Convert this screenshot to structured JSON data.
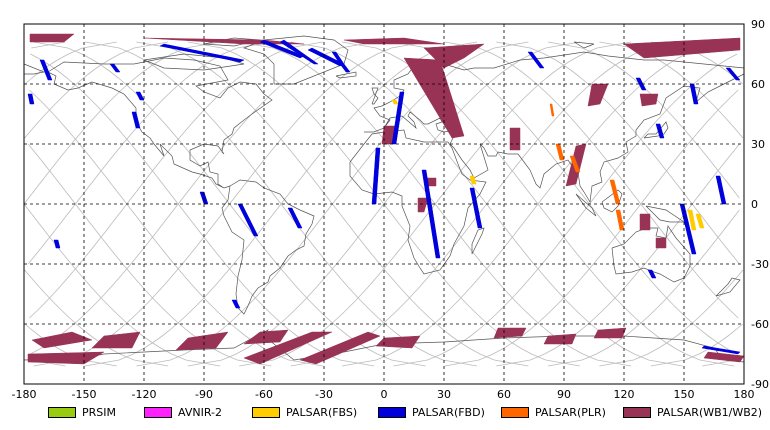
{
  "colors": {
    "PRSIM": "#99cc11",
    "AVNIR-2": "#ff22ff",
    "PALSAR(FBS)": "#ffcc00",
    "PALSAR(FBD)": "#0000dd",
    "PALSAR(PLR)": "#ff6600",
    "PALSAR(WB1/WB2)": "#993355",
    "grid": "#000000",
    "coast": "#555555",
    "track": "#bbbbbb"
  },
  "axes": {
    "lon_ticks": [
      "-180",
      "-150",
      "-120",
      "-90",
      "-60",
      "-30",
      "0",
      "30",
      "60",
      "90",
      "120",
      "150",
      "180"
    ],
    "lat_ticks": [
      "90",
      "60",
      "30",
      "0",
      "-30",
      "-60",
      "-90"
    ],
    "lon_range": [
      -180,
      180
    ],
    "lat_range": [
      -90,
      90
    ]
  },
  "legend": [
    {
      "key": "PRSIM",
      "label": "PRSIM"
    },
    {
      "key": "AVNIR-2",
      "label": "AVNIR-2"
    },
    {
      "key": "PALSAR(FBS)",
      "label": "PALSAR(FBS)"
    },
    {
      "key": "PALSAR(FBD)",
      "label": "PALSAR(FBD)"
    },
    {
      "key": "PALSAR(PLR)",
      "label": "PALSAR(PLR)"
    },
    {
      "key": "PALSAR(WB1/WB2)",
      "label": "PALSAR(WB1/WB2)"
    }
  ],
  "scenes": [
    {
      "sensor": "PALSAR(WB1/WB2)",
      "coords": [
        [
          -177,
          85
        ],
        [
          -155,
          85
        ],
        [
          -160,
          81
        ],
        [
          -177,
          81
        ]
      ]
    },
    {
      "sensor": "PALSAR(WB1/WB2)",
      "coords": [
        [
          -120,
          83
        ],
        [
          -70,
          80
        ],
        [
          -40,
          80
        ],
        [
          -60,
          82
        ]
      ]
    },
    {
      "sensor": "PALSAR(WB1/WB2)",
      "coords": [
        [
          -20,
          82
        ],
        [
          10,
          83
        ],
        [
          30,
          80
        ],
        [
          -10,
          80
        ]
      ]
    },
    {
      "sensor": "PALSAR(WB1/WB2)",
      "coords": [
        [
          20,
          78
        ],
        [
          50,
          80
        ],
        [
          40,
          73
        ],
        [
          30,
          68
        ]
      ]
    },
    {
      "sensor": "PALSAR(WB1/WB2)",
      "coords": [
        [
          10,
          73
        ],
        [
          28,
          72
        ],
        [
          40,
          34
        ],
        [
          34,
          33
        ]
      ]
    },
    {
      "sensor": "PALSAR(WB1/WB2)",
      "coords": [
        [
          120,
          80
        ],
        [
          178,
          83
        ],
        [
          178,
          77
        ],
        [
          130,
          73
        ]
      ]
    },
    {
      "sensor": "PALSAR(WB1/WB2)",
      "coords": [
        [
          104,
          60
        ],
        [
          112,
          60
        ],
        [
          108,
          50
        ],
        [
          102,
          49
        ]
      ]
    },
    {
      "sensor": "PALSAR(WB1/WB2)",
      "coords": [
        [
          128,
          55
        ],
        [
          137,
          55
        ],
        [
          136,
          50
        ],
        [
          129,
          49
        ]
      ]
    },
    {
      "sensor": "PALSAR(WB1/WB2)",
      "coords": [
        [
          0,
          39
        ],
        [
          6,
          39
        ],
        [
          4,
          30
        ],
        [
          -1,
          30
        ]
      ]
    },
    {
      "sensor": "PALSAR(WB1/WB2)",
      "coords": [
        [
          63,
          38
        ],
        [
          68,
          38
        ],
        [
          68,
          27
        ],
        [
          63,
          27
        ]
      ]
    },
    {
      "sensor": "PALSAR(WB1/WB2)",
      "coords": [
        [
          21,
          13
        ],
        [
          26,
          13
        ],
        [
          26,
          9
        ],
        [
          21,
          9
        ]
      ]
    },
    {
      "sensor": "PALSAR(WB1/WB2)",
      "coords": [
        [
          17,
          3
        ],
        [
          22,
          3
        ],
        [
          20,
          -4
        ],
        [
          17,
          -4
        ]
      ]
    },
    {
      "sensor": "PALSAR(WB1/WB2)",
      "coords": [
        [
          96,
          29
        ],
        [
          101,
          30
        ],
        [
          96,
          10
        ],
        [
          91,
          9
        ]
      ]
    },
    {
      "sensor": "PALSAR(WB1/WB2)",
      "coords": [
        [
          128,
          -5
        ],
        [
          133,
          -5
        ],
        [
          133,
          -13
        ],
        [
          128,
          -13
        ]
      ]
    },
    {
      "sensor": "PALSAR(WB1/WB2)",
      "coords": [
        [
          136,
          -17
        ],
        [
          141,
          -17
        ],
        [
          141,
          -22
        ],
        [
          136,
          -22
        ]
      ]
    },
    {
      "sensor": "PALSAR(WB1/WB2)",
      "coords": [
        [
          -176,
          -68
        ],
        [
          -156,
          -64
        ],
        [
          -146,
          -68
        ],
        [
          -170,
          -72
        ]
      ]
    },
    {
      "sensor": "PALSAR(WB1/WB2)",
      "coords": [
        [
          -178,
          -75
        ],
        [
          -140,
          -74
        ],
        [
          -150,
          -80
        ],
        [
          -178,
          -79
        ]
      ]
    },
    {
      "sensor": "PALSAR(WB1/WB2)",
      "coords": [
        [
          -140,
          -66
        ],
        [
          -122,
          -64
        ],
        [
          -126,
          -72
        ],
        [
          -146,
          -72
        ]
      ]
    },
    {
      "sensor": "PALSAR(WB1/WB2)",
      "coords": [
        [
          -98,
          -67
        ],
        [
          -78,
          -64
        ],
        [
          -84,
          -72
        ],
        [
          -104,
          -73
        ]
      ]
    },
    {
      "sensor": "PALSAR(WB1/WB2)",
      "coords": [
        [
          -62,
          -64
        ],
        [
          -48,
          -63
        ],
        [
          -52,
          -69
        ],
        [
          -70,
          -70
        ]
      ]
    },
    {
      "sensor": "PALSAR(WB1/WB2)",
      "coords": [
        [
          -70,
          -77
        ],
        [
          -36,
          -64
        ],
        [
          -26,
          -64
        ],
        [
          -62,
          -80
        ]
      ]
    },
    {
      "sensor": "PALSAR(WB1/WB2)",
      "coords": [
        [
          -42,
          -78
        ],
        [
          -8,
          -64
        ],
        [
          -2,
          -66
        ],
        [
          -34,
          -80
        ]
      ]
    },
    {
      "sensor": "PALSAR(WB1/WB2)",
      "coords": [
        [
          0,
          -67
        ],
        [
          18,
          -66
        ],
        [
          14,
          -72
        ],
        [
          -4,
          -71
        ]
      ]
    },
    {
      "sensor": "PALSAR(WB1/WB2)",
      "coords": [
        [
          57,
          -62
        ],
        [
          71,
          -62
        ],
        [
          69,
          -66
        ],
        [
          55,
          -67
        ]
      ]
    },
    {
      "sensor": "PALSAR(WB1/WB2)",
      "coords": [
        [
          82,
          -66
        ],
        [
          96,
          -65
        ],
        [
          94,
          -70
        ],
        [
          80,
          -70
        ]
      ]
    },
    {
      "sensor": "PALSAR(WB1/WB2)",
      "coords": [
        [
          107,
          -63
        ],
        [
          121,
          -62
        ],
        [
          119,
          -67
        ],
        [
          105,
          -67
        ]
      ]
    },
    {
      "sensor": "PALSAR(WB1/WB2)",
      "coords": [
        [
          162,
          -74
        ],
        [
          180,
          -76
        ],
        [
          178,
          -79
        ],
        [
          160,
          -77
        ]
      ]
    },
    {
      "sensor": "PALSAR(FBD)",
      "coords": [
        [
          -170,
          72
        ],
        [
          -166,
          62
        ],
        [
          -168,
          62
        ],
        [
          -172,
          72
        ]
      ]
    },
    {
      "sensor": "PALSAR(FBD)",
      "coords": [
        [
          -135,
          70
        ],
        [
          -132,
          66
        ],
        [
          -134,
          66
        ],
        [
          -137,
          70
        ]
      ]
    },
    {
      "sensor": "PALSAR(FBD)",
      "coords": [
        [
          -122,
          56
        ],
        [
          -120,
          52
        ],
        [
          -122,
          52
        ],
        [
          -124,
          56
        ]
      ]
    },
    {
      "sensor": "PALSAR(FBD)",
      "coords": [
        [
          -124,
          46
        ],
        [
          -122,
          38
        ],
        [
          -124,
          38
        ],
        [
          -126,
          46
        ]
      ]
    },
    {
      "sensor": "PALSAR(FBD)",
      "coords": [
        [
          -176,
          55
        ],
        [
          -175,
          50
        ],
        [
          -177,
          50
        ],
        [
          -178,
          55
        ]
      ]
    },
    {
      "sensor": "PALSAR(FBD)",
      "coords": [
        [
          -110,
          80
        ],
        [
          -70,
          72
        ],
        [
          -72,
          71
        ],
        [
          -112,
          79
        ]
      ]
    },
    {
      "sensor": "PALSAR(FBD)",
      "coords": [
        [
          -60,
          82
        ],
        [
          -40,
          74
        ],
        [
          -42,
          73
        ],
        [
          -62,
          81
        ]
      ]
    },
    {
      "sensor": "PALSAR(FBD)",
      "coords": [
        [
          -50,
          82
        ],
        [
          -33,
          70
        ],
        [
          -35,
          70
        ],
        [
          -52,
          81
        ]
      ]
    },
    {
      "sensor": "PALSAR(FBD)",
      "coords": [
        [
          -36,
          78
        ],
        [
          -20,
          70
        ],
        [
          -22,
          69
        ],
        [
          -38,
          77
        ]
      ]
    },
    {
      "sensor": "PALSAR(FBD)",
      "coords": [
        [
          -20,
          70
        ],
        [
          -17,
          66
        ],
        [
          -19,
          66
        ],
        [
          -22,
          70
        ]
      ]
    },
    {
      "sensor": "PALSAR(FBD)",
      "coords": [
        [
          -71,
          0
        ],
        [
          -63,
          -16
        ],
        [
          -65,
          -16
        ],
        [
          -73,
          0
        ]
      ]
    },
    {
      "sensor": "PALSAR(FBD)",
      "coords": [
        [
          -46,
          -2
        ],
        [
          -41,
          -12
        ],
        [
          -43,
          -12
        ],
        [
          -48,
          -2
        ]
      ]
    },
    {
      "sensor": "PALSAR(FBD)",
      "coords": [
        [
          -74,
          -48
        ],
        [
          -72,
          -52
        ],
        [
          -74,
          -52
        ],
        [
          -76,
          -48
        ]
      ]
    },
    {
      "sensor": "PALSAR(FBD)",
      "coords": [
        [
          -90,
          6
        ],
        [
          -88,
          0
        ],
        [
          -90,
          0
        ],
        [
          -92,
          6
        ]
      ]
    },
    {
      "sensor": "PALSAR(FBD)",
      "coords": [
        [
          -163,
          -18
        ],
        [
          -162,
          -22
        ],
        [
          -164,
          -22
        ],
        [
          -165,
          -18
        ]
      ]
    },
    {
      "sensor": "PALSAR(FBD)",
      "coords": [
        [
          10,
          56
        ],
        [
          6,
          30
        ],
        [
          4,
          30
        ],
        [
          8,
          56
        ]
      ]
    },
    {
      "sensor": "PALSAR(FBD)",
      "coords": [
        [
          -2,
          28
        ],
        [
          -4,
          0
        ],
        [
          -6,
          0
        ],
        [
          -4,
          28
        ]
      ]
    },
    {
      "sensor": "PALSAR(FBD)",
      "coords": [
        [
          21,
          17
        ],
        [
          28,
          -27
        ],
        [
          26,
          -27
        ],
        [
          19,
          17
        ]
      ]
    },
    {
      "sensor": "PALSAR(FBD)",
      "coords": [
        [
          45,
          8
        ],
        [
          49,
          -12
        ],
        [
          47,
          -12
        ],
        [
          43,
          8
        ]
      ]
    },
    {
      "sensor": "PALSAR(FBD)",
      "coords": [
        [
          74,
          76
        ],
        [
          80,
          68
        ],
        [
          78,
          68
        ],
        [
          72,
          76
        ]
      ]
    },
    {
      "sensor": "PALSAR(FBD)",
      "coords": [
        [
          -24,
          76
        ],
        [
          -20,
          70
        ],
        [
          -22,
          70
        ],
        [
          -26,
          76
        ]
      ]
    },
    {
      "sensor": "PALSAR(FBD)",
      "coords": [
        [
          128,
          63
        ],
        [
          131,
          57
        ],
        [
          129,
          57
        ],
        [
          126,
          63
        ]
      ]
    },
    {
      "sensor": "PALSAR(FBD)",
      "coords": [
        [
          138,
          40
        ],
        [
          140,
          33
        ],
        [
          138,
          33
        ],
        [
          136,
          40
        ]
      ]
    },
    {
      "sensor": "PALSAR(FBD)",
      "coords": [
        [
          173,
          68
        ],
        [
          178,
          62
        ],
        [
          176,
          62
        ],
        [
          171,
          68
        ]
      ]
    },
    {
      "sensor": "PALSAR(FBD)",
      "coords": [
        [
          155,
          60
        ],
        [
          157,
          50
        ],
        [
          155,
          50
        ],
        [
          153,
          60
        ]
      ]
    },
    {
      "sensor": "PALSAR(FBD)",
      "coords": [
        [
          168,
          14
        ],
        [
          171,
          0
        ],
        [
          169,
          0
        ],
        [
          166,
          14
        ]
      ]
    },
    {
      "sensor": "PALSAR(FBD)",
      "coords": [
        [
          150,
          0
        ],
        [
          156,
          -25
        ],
        [
          154,
          -25
        ],
        [
          148,
          0
        ]
      ]
    },
    {
      "sensor": "PALSAR(FBD)",
      "coords": [
        [
          134,
          -33
        ],
        [
          136,
          -37
        ],
        [
          134,
          -37
        ],
        [
          132,
          -33
        ]
      ]
    },
    {
      "sensor": "PALSAR(FBD)",
      "coords": [
        [
          160,
          -71
        ],
        [
          178,
          -74
        ],
        [
          177,
          -75
        ],
        [
          159,
          -72
        ]
      ]
    },
    {
      "sensor": "PALSAR(FBS)",
      "coords": [
        [
          6,
          52
        ],
        [
          7,
          50
        ],
        [
          5,
          50
        ],
        [
          4,
          52
        ]
      ]
    },
    {
      "sensor": "PALSAR(FBS)",
      "coords": [
        [
          45,
          14
        ],
        [
          46,
          10
        ],
        [
          44,
          10
        ],
        [
          43,
          14
        ]
      ]
    },
    {
      "sensor": "PALSAR(FBS)",
      "coords": [
        [
          154,
          -3
        ],
        [
          156,
          -13
        ],
        [
          154,
          -13
        ],
        [
          152,
          -3
        ]
      ]
    },
    {
      "sensor": "PALSAR(FBS)",
      "coords": [
        [
          158,
          -5
        ],
        [
          160,
          -12
        ],
        [
          158,
          -12
        ],
        [
          156,
          -5
        ]
      ]
    },
    {
      "sensor": "PALSAR(PLR)",
      "coords": [
        [
          84,
          50
        ],
        [
          85,
          44
        ],
        [
          84,
          44
        ],
        [
          83,
          50
        ]
      ]
    },
    {
      "sensor": "PALSAR(PLR)",
      "coords": [
        [
          88,
          30
        ],
        [
          90,
          22
        ],
        [
          88,
          22
        ],
        [
          86,
          30
        ]
      ]
    },
    {
      "sensor": "PALSAR(PLR)",
      "coords": [
        [
          115,
          12
        ],
        [
          118,
          0
        ],
        [
          116,
          0
        ],
        [
          113,
          12
        ]
      ]
    },
    {
      "sensor": "PALSAR(PLR)",
      "coords": [
        [
          118,
          -3
        ],
        [
          120,
          -13
        ],
        [
          118,
          -13
        ],
        [
          116,
          -3
        ]
      ]
    },
    {
      "sensor": "PALSAR(PLR)",
      "coords": [
        [
          95,
          24
        ],
        [
          98,
          16
        ],
        [
          96,
          16
        ],
        [
          93,
          24
        ]
      ]
    }
  ]
}
